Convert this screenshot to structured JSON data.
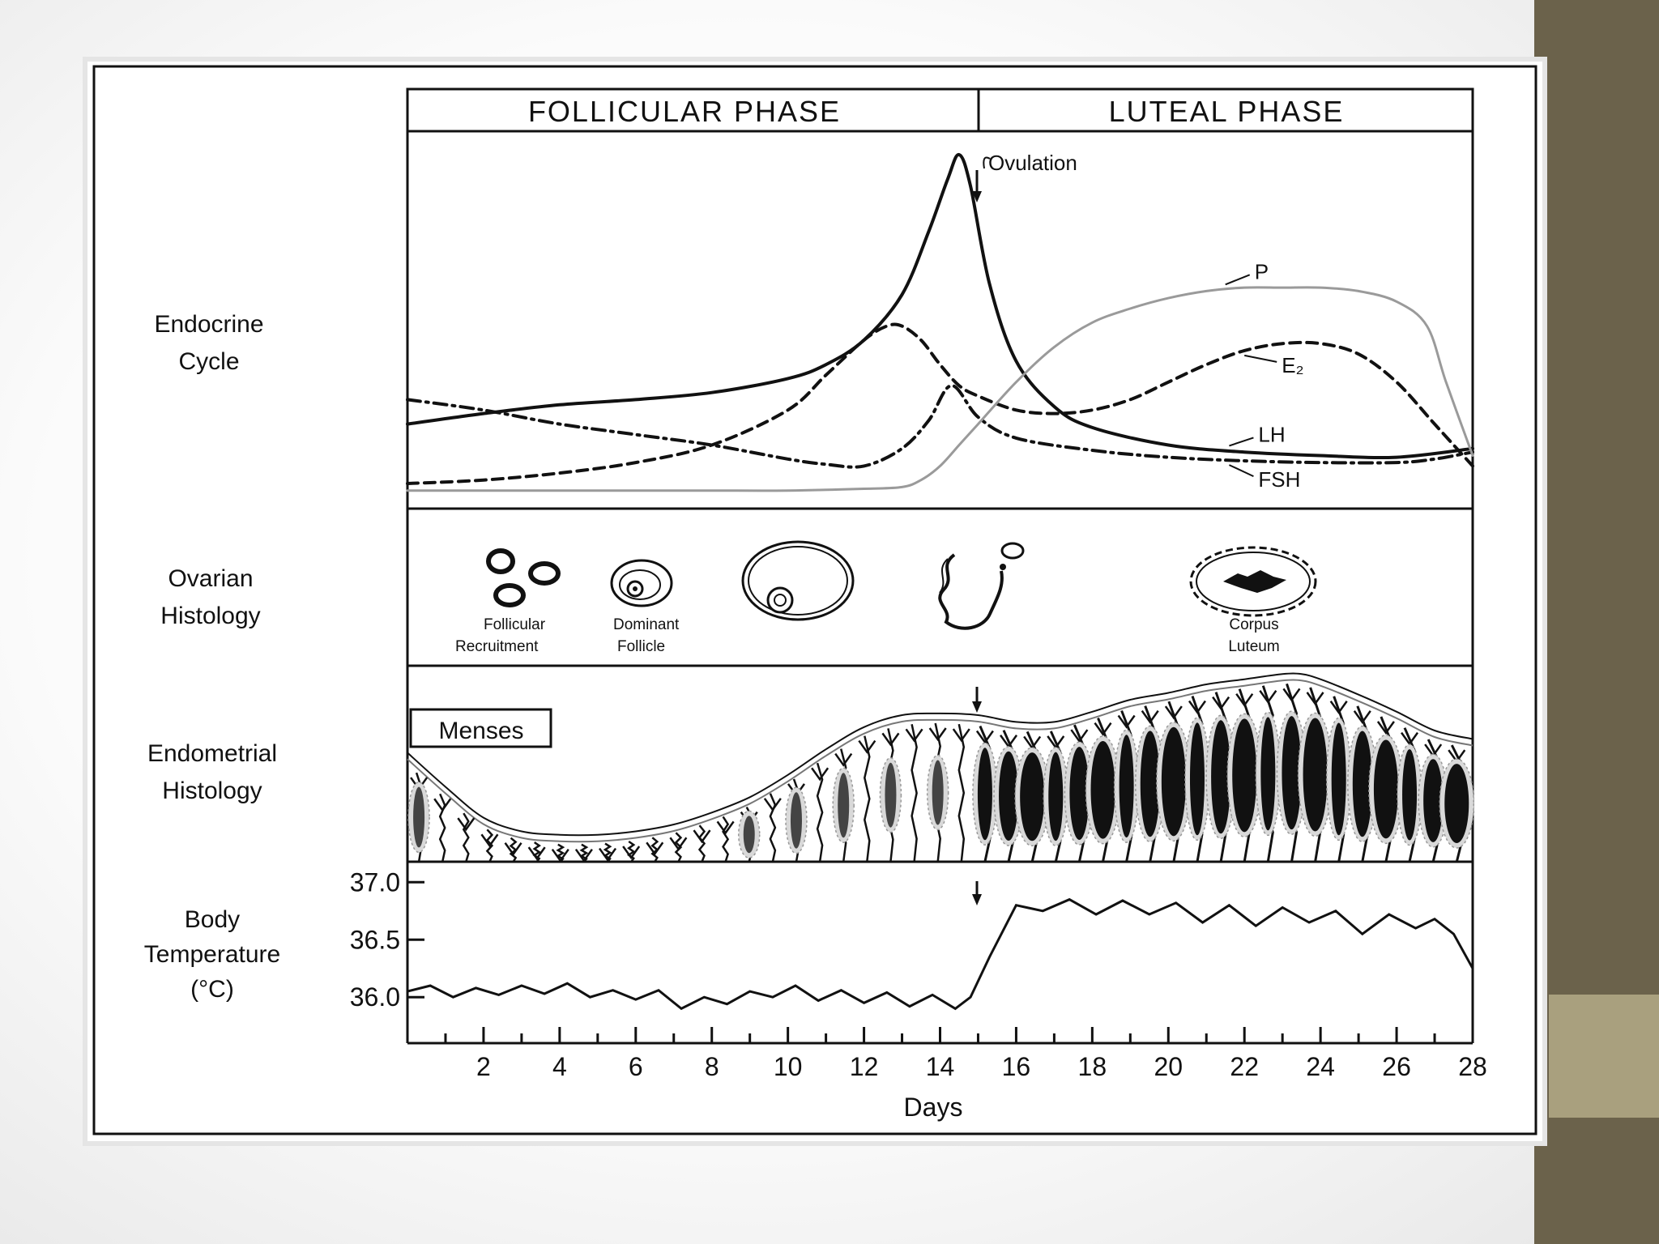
{
  "colors": {
    "slide_background": "#f8f8f8",
    "side_bar": "#6b624b",
    "side_accent": "#a9a07e",
    "ink": "#111111",
    "progesterone_line": "#9a9a9a"
  },
  "phases": {
    "follicular": "FOLLICULAR PHASE",
    "luteal": "LUTEAL PHASE"
  },
  "row_labels": {
    "endocrine": [
      "Endocrine",
      "Cycle"
    ],
    "ovarian": [
      "Ovarian",
      "Histology"
    ],
    "endometrial": [
      "Endometrial",
      "Histology"
    ],
    "temperature": [
      "Body",
      "Temperature",
      "(°C)"
    ]
  },
  "annotations": {
    "ovulation": "Ovulation",
    "menses": "Menses"
  },
  "ovarian_labels": {
    "recruitment": [
      "Follicular",
      "Recruitment"
    ],
    "dominant": [
      "Dominant",
      "Follicle"
    ],
    "corpus_luteum": [
      "Corpus",
      "Luteum"
    ]
  },
  "chart_data": {
    "type": "line",
    "x_axis": {
      "label": "Days",
      "range": [
        0,
        28
      ],
      "ticks": [
        2,
        4,
        6,
        8,
        10,
        12,
        14,
        16,
        18,
        20,
        22,
        24,
        26,
        28
      ],
      "ovulation_day": 15
    },
    "endocrine": {
      "y_range": [
        0,
        100
      ],
      "series": [
        {
          "name": "LH",
          "style": "solid",
          "x": [
            0,
            2,
            4,
            6,
            8,
            10,
            11,
            12,
            13,
            13.7,
            14.2,
            14.5,
            14.8,
            15.3,
            16,
            17,
            18,
            20,
            22,
            24,
            26,
            28
          ],
          "y": [
            20,
            23,
            25.5,
            27,
            29,
            33,
            37,
            44,
            57,
            75,
            90,
            97,
            88,
            60,
            38,
            25,
            19,
            14,
            12,
            11,
            10.5,
            13
          ]
        },
        {
          "name": "FSH",
          "style": "dashdot",
          "x": [
            0,
            2,
            4,
            6,
            8,
            10,
            11,
            12,
            13,
            13.7,
            14.3,
            15,
            16,
            18,
            20,
            22,
            24,
            26,
            27,
            28
          ],
          "y": [
            27,
            24,
            20,
            17,
            14,
            10,
            8.5,
            8,
            13,
            21,
            31,
            22,
            16,
            12.5,
            10.5,
            9.5,
            9,
            9,
            10,
            12
          ]
        },
        {
          "name": "E₂",
          "style": "dashed",
          "x": [
            0,
            2,
            4,
            6,
            8,
            10,
            11,
            12,
            12.6,
            13,
            13.5,
            14,
            14.5,
            15,
            16,
            17,
            18,
            19,
            20,
            21,
            22,
            23,
            24,
            25,
            26,
            27,
            28
          ],
          "y": [
            3,
            4,
            6,
            9,
            14,
            24,
            34,
            44,
            48,
            48,
            44,
            37,
            31,
            28,
            24,
            23,
            24,
            27,
            32,
            37,
            41,
            43,
            43,
            40,
            32,
            20,
            8
          ]
        },
        {
          "name": "P",
          "style": "solid-gray",
          "x": [
            0,
            2,
            4,
            6,
            8,
            10,
            12,
            13,
            13.5,
            14,
            14.5,
            15,
            16,
            17,
            18,
            19,
            20,
            21,
            22,
            23,
            24,
            25,
            26,
            26.8,
            27.3,
            28
          ],
          "y": [
            1,
            1,
            1,
            1,
            1,
            1,
            1.5,
            2,
            4,
            8,
            14,
            20,
            32,
            42,
            49,
            53,
            56,
            58,
            59,
            59,
            59,
            58,
            55,
            48,
            32,
            11
          ]
        }
      ]
    },
    "temperature": {
      "y_label": "Body Temperature (°C)",
      "y_ticks": [
        36.0,
        36.5,
        37.0
      ],
      "y_range": [
        35.6,
        37.15
      ],
      "x": [
        0,
        0.6,
        1.2,
        1.8,
        2.4,
        3,
        3.6,
        4.2,
        4.8,
        5.4,
        6,
        6.6,
        7.2,
        7.8,
        8.4,
        9,
        9.6,
        10.2,
        10.8,
        11.4,
        12,
        12.6,
        13.2,
        13.8,
        14.4,
        14.8,
        15.3,
        16,
        16.7,
        17.4,
        18.1,
        18.8,
        19.5,
        20.2,
        20.9,
        21.6,
        22.3,
        23,
        23.7,
        24.4,
        25.1,
        25.8,
        26.5,
        27,
        27.5,
        28
      ],
      "y": [
        36.05,
        36.1,
        36.0,
        36.08,
        36.02,
        36.1,
        36.03,
        36.12,
        36.0,
        36.06,
        35.98,
        36.06,
        35.9,
        36.0,
        35.94,
        36.05,
        36.0,
        36.1,
        35.97,
        36.06,
        35.95,
        36.04,
        35.92,
        36.02,
        35.9,
        36.0,
        36.35,
        36.8,
        36.75,
        36.85,
        36.72,
        36.84,
        36.72,
        36.82,
        36.65,
        36.8,
        36.62,
        36.78,
        36.65,
        36.75,
        36.55,
        36.72,
        36.6,
        36.68,
        36.55,
        36.25
      ]
    },
    "endometrium": {
      "y_range": [
        0,
        100
      ],
      "x": [
        0,
        1,
        2,
        3,
        4,
        5,
        6,
        7,
        8,
        9,
        10,
        11,
        12,
        13,
        14,
        15,
        16,
        17,
        18,
        19,
        20,
        21,
        22,
        23,
        23.5,
        24,
        25,
        26,
        27,
        28
      ],
      "thickness": [
        60,
        40,
        22,
        14,
        12,
        12,
        14,
        18,
        25,
        34,
        47,
        62,
        75,
        82,
        83,
        82,
        78,
        78,
        84,
        91,
        95,
        100,
        103,
        106,
        106,
        103,
        94,
        84,
        73,
        68
      ]
    }
  }
}
